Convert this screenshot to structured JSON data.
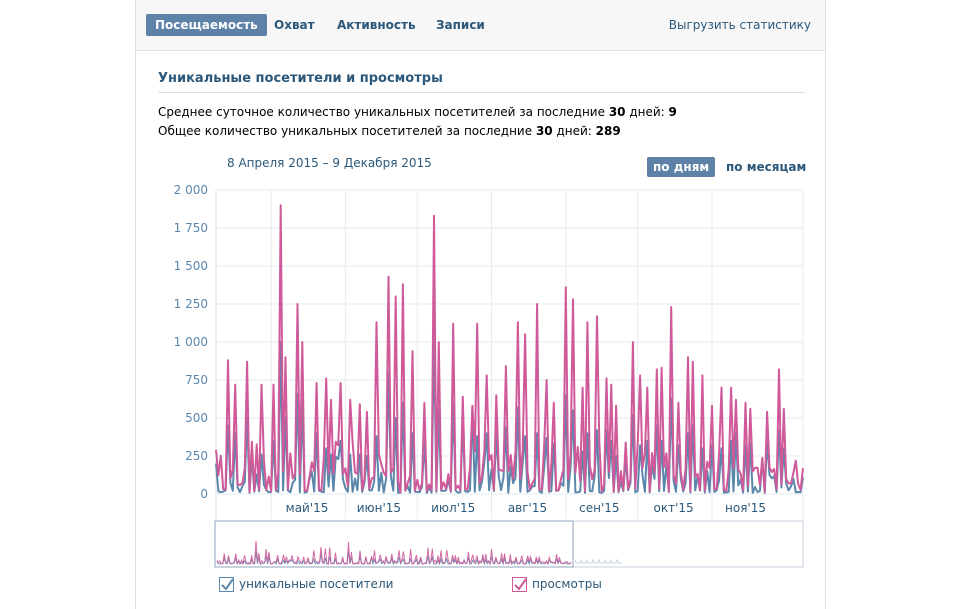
{
  "tabs": [
    {
      "label": "Посещаемость",
      "active": true
    },
    {
      "label": "Охват",
      "active": false
    },
    {
      "label": "Активность",
      "active": false
    },
    {
      "label": "Записи",
      "active": false
    }
  ],
  "export_link": "Выгрузить статистику",
  "section_title": "Уникальные посетители и просмотры",
  "stats": {
    "avg_prefix": "Среднее суточное количество уникальных посетителей за последние ",
    "avg_days": "30",
    "avg_middle": " дней: ",
    "avg_value": "9",
    "total_prefix": "Общее количество уникальных посетителей за последние ",
    "total_days": "30",
    "total_middle": " дней: ",
    "total_value": "289"
  },
  "date_range": "8 Апреля 2015 – 9 Декабря 2015",
  "period_buttons": {
    "by_days": "по дням",
    "by_months": "по месяцам"
  },
  "colors": {
    "visitors": "#5b87ad",
    "views": "#d05a99",
    "accent": "#5e81a8",
    "link": "#2b587a"
  },
  "chart_data": {
    "type": "line",
    "title": "Уникальные посетители и просмотры",
    "ylim": [
      0,
      2000
    ],
    "yticks": [
      "2 000",
      "1 750",
      "1 500",
      "1 250",
      "1 000",
      "750",
      "500",
      "250",
      "0"
    ],
    "x_range": [
      "2015-04-08",
      "2015-12-09"
    ],
    "month_labels": [
      "май'15",
      "июн'15",
      "июл'15",
      "авг'15",
      "сен'15",
      "окт'15",
      "ноя'15"
    ],
    "month_day_index": [
      23,
      54,
      84,
      115,
      146,
      176,
      207
    ],
    "label_day_index": [
      38,
      68,
      99,
      130,
      160,
      191,
      221
    ],
    "num_days": 246,
    "peaks": [
      {
        "day": 5,
        "visitors": 450,
        "views": 880
      },
      {
        "day": 8,
        "visitors": 400,
        "views": 720
      },
      {
        "day": 13,
        "visitors": 500,
        "views": 870
      },
      {
        "day": 19,
        "visitors": 260,
        "views": 720
      },
      {
        "day": 24,
        "visitors": 350,
        "views": 720
      },
      {
        "day": 27,
        "visitors": 1000,
        "views": 1900
      },
      {
        "day": 29,
        "visitors": 500,
        "views": 900
      },
      {
        "day": 34,
        "visitors": 660,
        "views": 1250
      },
      {
        "day": 36,
        "visitors": 600,
        "views": 1000
      },
      {
        "day": 42,
        "visitors": 400,
        "views": 730
      },
      {
        "day": 46,
        "visitors": 300,
        "views": 760
      },
      {
        "day": 48,
        "visitors": 260,
        "views": 620
      },
      {
        "day": 52,
        "visitors": 350,
        "views": 730
      },
      {
        "day": 56,
        "visitors": 260,
        "views": 620
      },
      {
        "day": 60,
        "visitors": 260,
        "views": 590
      },
      {
        "day": 63,
        "visitors": 250,
        "views": 540
      },
      {
        "day": 67,
        "visitors": 380,
        "views": 1130
      },
      {
        "day": 72,
        "visitors": 800,
        "views": 1430
      },
      {
        "day": 75,
        "visitors": 500,
        "views": 1300
      },
      {
        "day": 78,
        "visitors": 600,
        "views": 1380
      },
      {
        "day": 82,
        "visitors": 400,
        "views": 940
      },
      {
        "day": 87,
        "visitors": 350,
        "views": 600
      },
      {
        "day": 91,
        "visitors": 1050,
        "views": 1830
      },
      {
        "day": 93,
        "visitors": 550,
        "views": 1000
      },
      {
        "day": 99,
        "visitors": 600,
        "views": 1120
      },
      {
        "day": 103,
        "visitors": 480,
        "views": 640
      },
      {
        "day": 107,
        "visitors": 560,
        "views": 580
      },
      {
        "day": 109,
        "visitors": 380,
        "views": 1120
      },
      {
        "day": 113,
        "visitors": 400,
        "views": 780
      },
      {
        "day": 117,
        "visitors": 400,
        "views": 650
      },
      {
        "day": 121,
        "visitors": 440,
        "views": 840
      },
      {
        "day": 126,
        "visitors": 570,
        "views": 1130
      },
      {
        "day": 129,
        "visitors": 380,
        "views": 1050
      },
      {
        "day": 134,
        "visitors": 400,
        "views": 1250
      },
      {
        "day": 138,
        "visitors": 370,
        "views": 750
      },
      {
        "day": 141,
        "visitors": 330,
        "views": 600
      },
      {
        "day": 146,
        "visitors": 650,
        "views": 1360
      },
      {
        "day": 149,
        "visitors": 550,
        "views": 1280
      },
      {
        "day": 153,
        "visitors": 280,
        "views": 700
      },
      {
        "day": 155,
        "visitors": 400,
        "views": 1130
      },
      {
        "day": 159,
        "visitors": 420,
        "views": 1170
      },
      {
        "day": 163,
        "visitors": 420,
        "views": 760
      },
      {
        "day": 165,
        "visitors": 350,
        "views": 720
      },
      {
        "day": 167,
        "visitors": 250,
        "views": 580
      },
      {
        "day": 174,
        "visitors": 520,
        "views": 1000
      },
      {
        "day": 177,
        "visitors": 320,
        "views": 780
      },
      {
        "day": 180,
        "visitors": 350,
        "views": 700
      },
      {
        "day": 184,
        "visitors": 450,
        "views": 820
      },
      {
        "day": 186,
        "visitors": 350,
        "views": 830
      },
      {
        "day": 190,
        "visitors": 630,
        "views": 1230
      },
      {
        "day": 193,
        "visitors": 320,
        "views": 600
      },
      {
        "day": 197,
        "visitors": 400,
        "views": 900
      },
      {
        "day": 199,
        "visitors": 450,
        "views": 870
      },
      {
        "day": 203,
        "visitors": 300,
        "views": 780
      },
      {
        "day": 207,
        "visitors": 320,
        "views": 580
      },
      {
        "day": 211,
        "visitors": 300,
        "views": 700
      },
      {
        "day": 215,
        "visitors": 350,
        "views": 700
      },
      {
        "day": 217,
        "visitors": 400,
        "views": 620
      },
      {
        "day": 221,
        "visitors": 320,
        "views": 600
      },
      {
        "day": 223,
        "visitors": 330,
        "views": 560
      },
      {
        "day": 230,
        "visitors": 350,
        "views": 540
      },
      {
        "day": 235,
        "visitors": 420,
        "views": 820
      },
      {
        "day": 237,
        "visitors": 300,
        "views": 560
      }
    ],
    "end_values": {
      "visitors": 110,
      "views": 170
    },
    "series": [
      {
        "name": "уникальные посетители",
        "color": "#5b87ad"
      },
      {
        "name": "просмотры",
        "color": "#d05a99"
      }
    ]
  }
}
